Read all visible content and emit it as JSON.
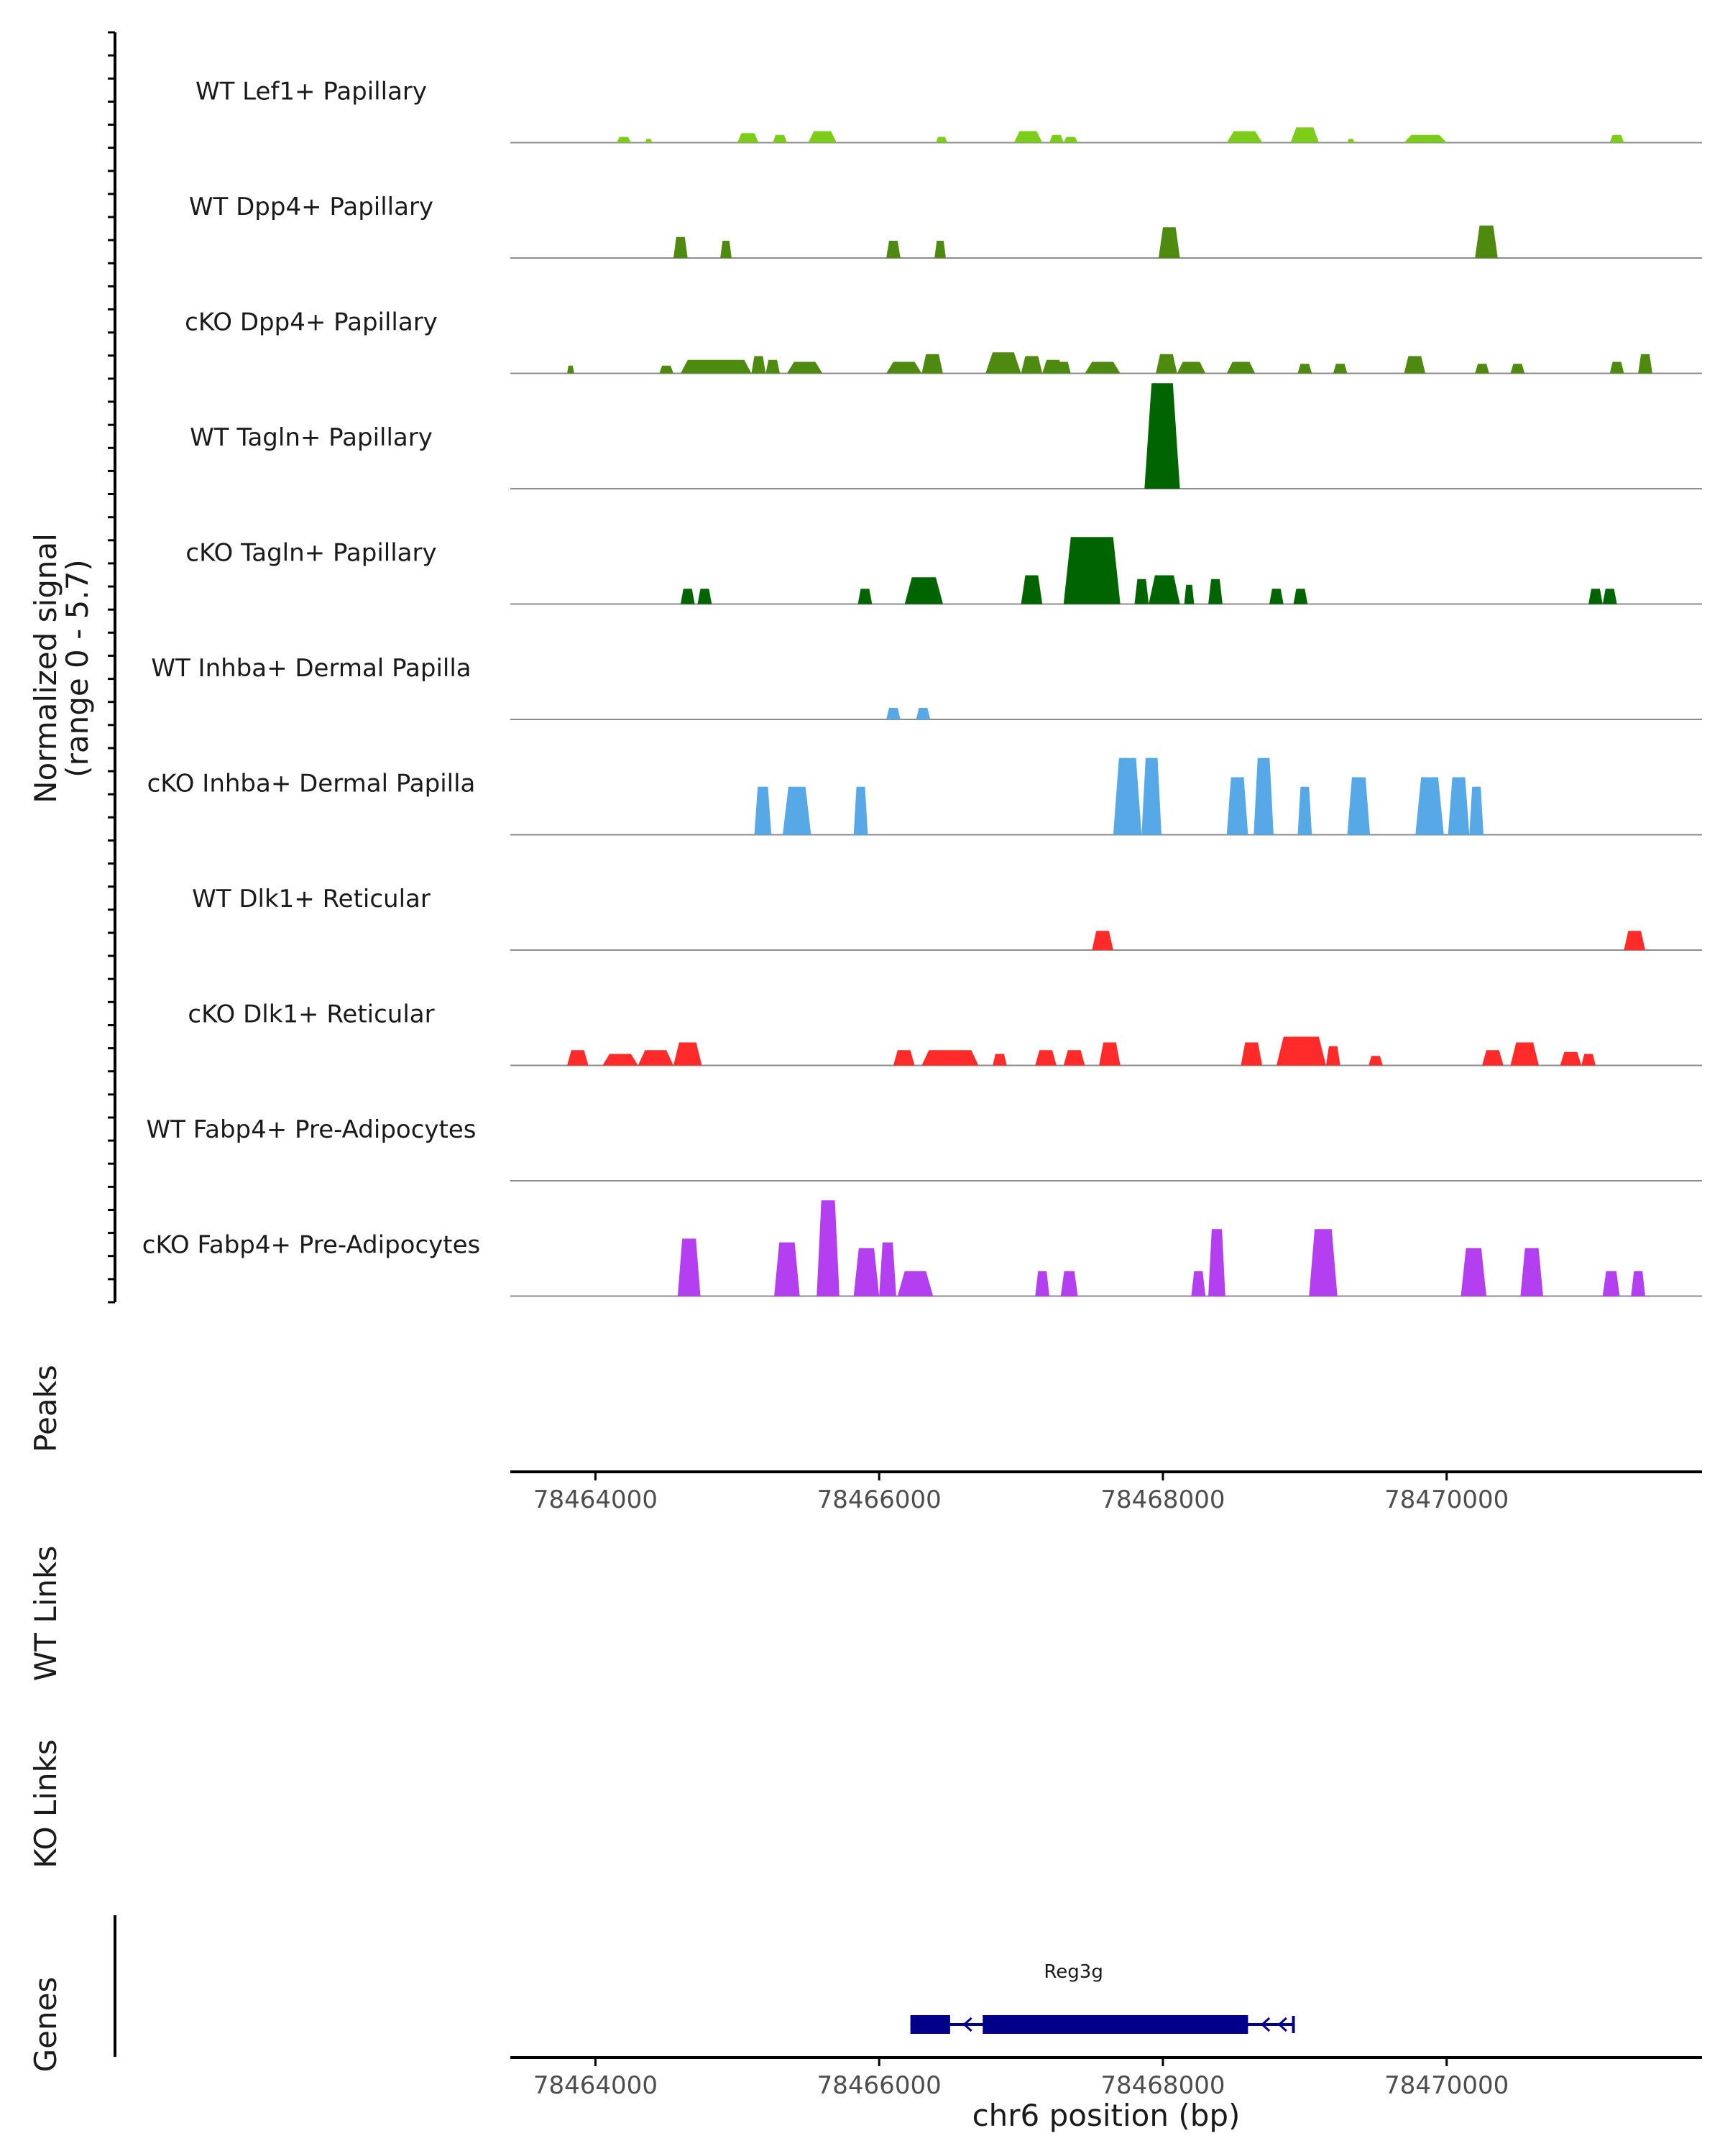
{
  "chart_data": {
    "type": "area",
    "title": "",
    "chromosome": "chr6",
    "xlabel": "chr6 position (bp)",
    "xlim": [
      78463400,
      78471800
    ],
    "xticks": [
      78464000,
      78466000,
      78468000,
      78470000
    ],
    "xtick_labels": [
      "78464000",
      "78466000",
      "78468000",
      "78470000"
    ],
    "ylabel": "Normalized signal",
    "ylabel_range": "(range 0 - 5.7)",
    "ylim": [
      0,
      5.7
    ],
    "panels": {
      "peaks": "Peaks",
      "wt_links": "WT Links",
      "ko_links": "KO Links",
      "genes": "Genes"
    },
    "tracks": [
      {
        "name": "WT Lef1+ Papillary",
        "color": "#7ccd1a",
        "peaks": [
          [
            78464150,
            78464250,
            0.3
          ],
          [
            78464350,
            78464400,
            0.2
          ],
          [
            78465000,
            78465150,
            0.5
          ],
          [
            78465250,
            78465350,
            0.4
          ],
          [
            78465500,
            78465700,
            0.6
          ],
          [
            78466400,
            78466480,
            0.3
          ],
          [
            78466950,
            78467150,
            0.6
          ],
          [
            78467200,
            78467300,
            0.4
          ],
          [
            78467300,
            78467400,
            0.3
          ],
          [
            78468450,
            78468700,
            0.6
          ],
          [
            78468900,
            78469100,
            0.8
          ],
          [
            78469300,
            78469350,
            0.2
          ],
          [
            78469700,
            78470000,
            0.4
          ],
          [
            78471150,
            78471250,
            0.4
          ]
        ]
      },
      {
        "name": "WT Dpp4+ Papillary",
        "color": "#4f8a10",
        "peaks": [
          [
            78464550,
            78464650,
            1.1
          ],
          [
            78464880,
            78464960,
            0.9
          ],
          [
            78466050,
            78466150,
            0.9
          ],
          [
            78466390,
            78466470,
            0.9
          ],
          [
            78467970,
            78468120,
            1.6
          ],
          [
            78470200,
            78470360,
            1.7
          ]
        ]
      },
      {
        "name": "cKO Dpp4+ Papillary",
        "color": "#4f8a10",
        "peaks": [
          [
            78463800,
            78463850,
            0.4
          ],
          [
            78464450,
            78464550,
            0.4
          ],
          [
            78464600,
            78465100,
            0.7
          ],
          [
            78465100,
            78465200,
            0.9
          ],
          [
            78465200,
            78465300,
            0.7
          ],
          [
            78465350,
            78465600,
            0.6
          ],
          [
            78466050,
            78466300,
            0.6
          ],
          [
            78466300,
            78466450,
            1.0
          ],
          [
            78466750,
            78467000,
            1.1
          ],
          [
            78467000,
            78467150,
            0.9
          ],
          [
            78467150,
            78467300,
            0.7
          ],
          [
            78467250,
            78467350,
            0.6
          ],
          [
            78467450,
            78467700,
            0.6
          ],
          [
            78467950,
            78468100,
            1.0
          ],
          [
            78468100,
            78468300,
            0.6
          ],
          [
            78468450,
            78468650,
            0.6
          ],
          [
            78468950,
            78469050,
            0.5
          ],
          [
            78469200,
            78469300,
            0.5
          ],
          [
            78469700,
            78469850,
            0.9
          ],
          [
            78470200,
            78470300,
            0.5
          ],
          [
            78470450,
            78470550,
            0.5
          ],
          [
            78471150,
            78471250,
            0.6
          ],
          [
            78471350,
            78471450,
            1.0
          ]
        ]
      },
      {
        "name": "WT Tagln+ Papillary",
        "color": "#006400",
        "peaks": [
          [
            78467870,
            78468120,
            5.5
          ]
        ]
      },
      {
        "name": "cKO Tagln+ Papillary",
        "color": "#006400",
        "peaks": [
          [
            78464600,
            78464700,
            0.8
          ],
          [
            78464720,
            78464820,
            0.8
          ],
          [
            78465850,
            78465950,
            0.8
          ],
          [
            78466180,
            78466450,
            1.4
          ],
          [
            78467000,
            78467150,
            1.5
          ],
          [
            78467300,
            78467700,
            3.5
          ],
          [
            78467800,
            78467900,
            1.3
          ],
          [
            78467900,
            78468120,
            1.5
          ],
          [
            78468150,
            78468220,
            1.0
          ],
          [
            78468320,
            78468420,
            1.3
          ],
          [
            78468750,
            78468850,
            0.8
          ],
          [
            78468920,
            78469020,
            0.8
          ],
          [
            78471000,
            78471100,
            0.8
          ],
          [
            78471100,
            78471200,
            0.8
          ]
        ]
      },
      {
        "name": "WT Inhba+ Dermal Papilla",
        "color": "#56a8e6",
        "peaks": [
          [
            78466050,
            78466150,
            0.6
          ],
          [
            78466260,
            78466360,
            0.6
          ]
        ]
      },
      {
        "name": "cKO Inhba+ Dermal Papilla",
        "color": "#56a8e6",
        "peaks": [
          [
            78465120,
            78465240,
            2.5
          ],
          [
            78465320,
            78465520,
            2.5
          ],
          [
            78465820,
            78465920,
            2.5
          ],
          [
            78467650,
            78467850,
            4.0
          ],
          [
            78467850,
            78467990,
            4.0
          ],
          [
            78468450,
            78468600,
            3.0
          ],
          [
            78468640,
            78468780,
            4.0
          ],
          [
            78468950,
            78469050,
            2.5
          ],
          [
            78469300,
            78469460,
            3.0
          ],
          [
            78469780,
            78469980,
            3.0
          ],
          [
            78470010,
            78470160,
            3.0
          ],
          [
            78470160,
            78470260,
            2.5
          ]
        ]
      },
      {
        "name": "WT Dlk1+ Reticular",
        "color": "#ff2a2a",
        "peaks": [
          [
            78467500,
            78467650,
            1.0
          ],
          [
            78471250,
            78471400,
            1.0
          ]
        ]
      },
      {
        "name": "cKO Dlk1+ Reticular",
        "color": "#ff2a2a",
        "peaks": [
          [
            78463800,
            78463950,
            0.8
          ],
          [
            78464050,
            78464300,
            0.6
          ],
          [
            78464300,
            78464550,
            0.8
          ],
          [
            78464550,
            78464750,
            1.2
          ],
          [
            78466100,
            78466250,
            0.8
          ],
          [
            78466300,
            78466700,
            0.8
          ],
          [
            78466800,
            78466900,
            0.6
          ],
          [
            78467100,
            78467250,
            0.8
          ],
          [
            78467300,
            78467450,
            0.8
          ],
          [
            78467550,
            78467700,
            1.2
          ],
          [
            78468550,
            78468700,
            1.2
          ],
          [
            78468800,
            78469150,
            1.5
          ],
          [
            78469150,
            78469250,
            1.0
          ],
          [
            78469450,
            78469550,
            0.5
          ],
          [
            78470250,
            78470400,
            0.8
          ],
          [
            78470450,
            78470650,
            1.2
          ],
          [
            78470800,
            78470950,
            0.7
          ],
          [
            78470950,
            78471050,
            0.6
          ]
        ]
      },
      {
        "name": "WT Fabp4+ Pre-Adipocytes",
        "color": "#b33ff0",
        "peaks": []
      },
      {
        "name": "cKO Fabp4+ Pre-Adipocytes",
        "color": "#b33ff0",
        "peaks": [
          [
            78464580,
            78464740,
            3.0
          ],
          [
            78465260,
            78465440,
            2.8
          ],
          [
            78465560,
            78465720,
            5.0
          ],
          [
            78465820,
            78466000,
            2.5
          ],
          [
            78466000,
            78466120,
            2.8
          ],
          [
            78466130,
            78466380,
            1.3
          ],
          [
            78467100,
            78467200,
            1.3
          ],
          [
            78467280,
            78467400,
            1.3
          ],
          [
            78468200,
            78468300,
            1.3
          ],
          [
            78468320,
            78468440,
            3.5
          ],
          [
            78469030,
            78469230,
            3.5
          ],
          [
            78470100,
            78470280,
            2.5
          ],
          [
            78470520,
            78470680,
            2.5
          ],
          [
            78471100,
            78471220,
            1.3
          ],
          [
            78471300,
            78471400,
            1.3
          ]
        ]
      }
    ],
    "gene": {
      "name": "Reg3g",
      "strand": "-",
      "start": 78466220,
      "end": 78468920,
      "exons": [
        [
          78466220,
          78466500
        ],
        [
          78466730,
          78468600
        ]
      ],
      "color": "#00008b"
    }
  }
}
